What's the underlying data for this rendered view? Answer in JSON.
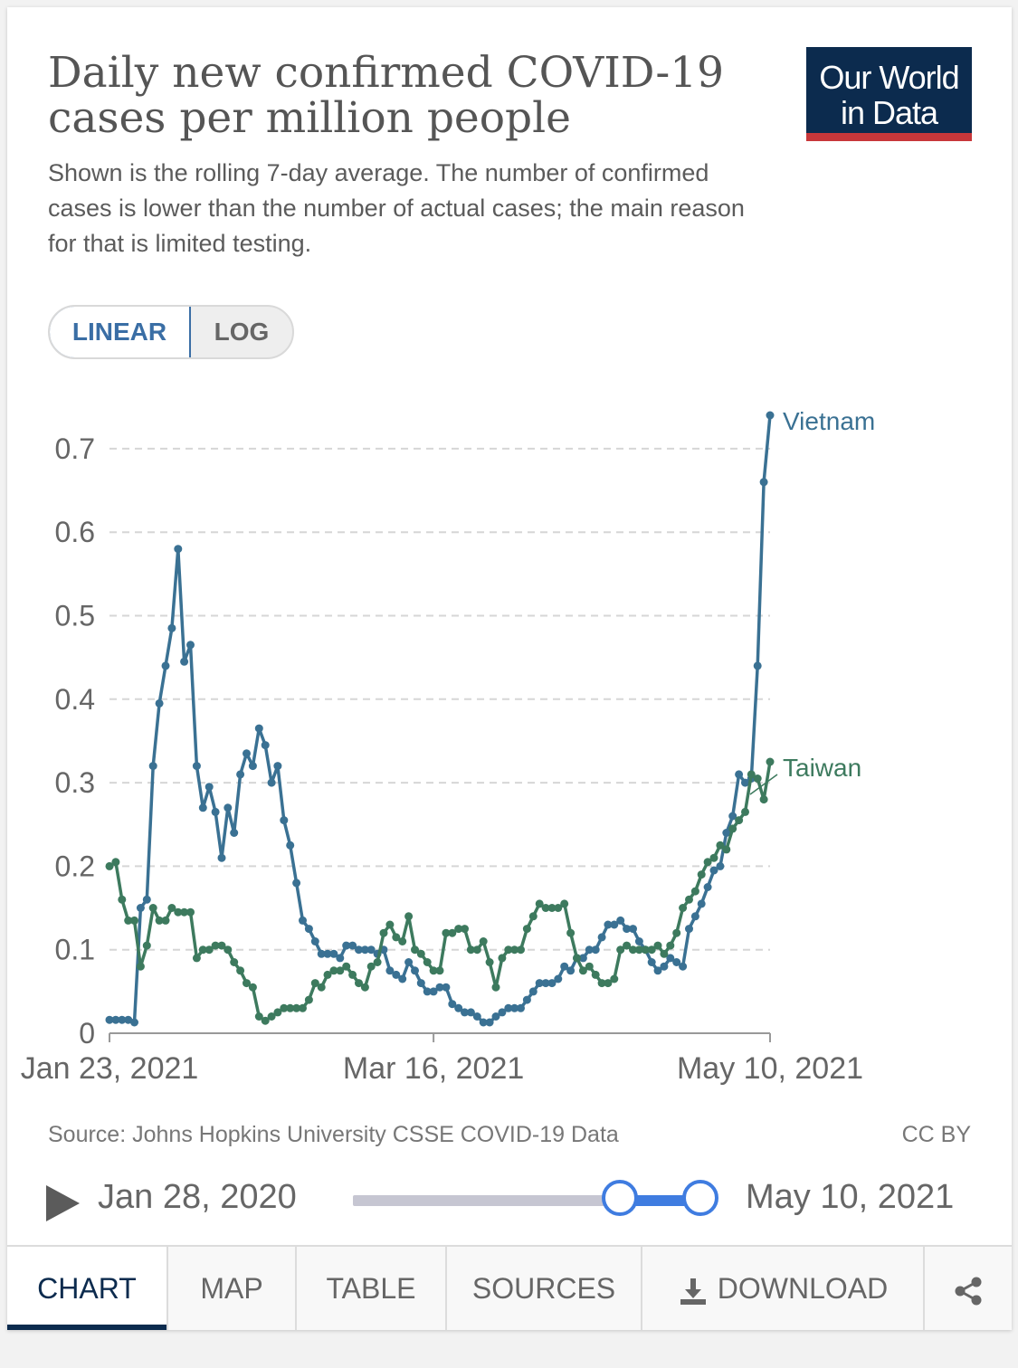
{
  "title": "Daily new confirmed COVID-19 cases per million people",
  "subtitle": "Shown is the rolling 7-day average. The number of confirmed cases is lower than the number of actual cases; the main reason for that is limited testing.",
  "logo": {
    "line1": "Our World",
    "line2": "in Data"
  },
  "scale_toggle": {
    "linear": "LINEAR",
    "log": "LOG",
    "selected": "LINEAR"
  },
  "chart_data": {
    "type": "line",
    "x_start": "Jan 23, 2021",
    "x_end": "May 10, 2021",
    "x_tick_labels": [
      "Jan 23, 2021",
      "Mar 16, 2021",
      "May 10, 2021"
    ],
    "y_tick_labels": [
      "0",
      "0.1",
      "0.2",
      "0.3",
      "0.4",
      "0.5",
      "0.6",
      "0.7"
    ],
    "ylim": [
      0,
      0.74
    ],
    "grid": true,
    "legend": "end-of-line labels",
    "series": [
      {
        "name": "Vietnam",
        "color": "#3a7193",
        "values": [
          0.016,
          0.016,
          0.016,
          0.016,
          0.013,
          0.15,
          0.16,
          0.32,
          0.395,
          0.44,
          0.485,
          0.58,
          0.445,
          0.465,
          0.32,
          0.27,
          0.295,
          0.265,
          0.21,
          0.27,
          0.24,
          0.31,
          0.335,
          0.32,
          0.365,
          0.345,
          0.3,
          0.32,
          0.255,
          0.225,
          0.18,
          0.135,
          0.125,
          0.11,
          0.095,
          0.095,
          0.095,
          0.09,
          0.105,
          0.105,
          0.1,
          0.1,
          0.1,
          0.095,
          0.1,
          0.075,
          0.07,
          0.065,
          0.085,
          0.075,
          0.06,
          0.05,
          0.05,
          0.055,
          0.055,
          0.035,
          0.03,
          0.025,
          0.025,
          0.02,
          0.013,
          0.013,
          0.02,
          0.025,
          0.03,
          0.03,
          0.03,
          0.04,
          0.05,
          0.06,
          0.06,
          0.06,
          0.065,
          0.08,
          0.075,
          0.09,
          0.09,
          0.1,
          0.1,
          0.115,
          0.13,
          0.13,
          0.135,
          0.125,
          0.125,
          0.11,
          0.1,
          0.085,
          0.075,
          0.08,
          0.09,
          0.085,
          0.08,
          0.125,
          0.14,
          0.155,
          0.175,
          0.195,
          0.2,
          0.24,
          0.26,
          0.31,
          0.3,
          0.305,
          0.44,
          0.66,
          0.74
        ]
      },
      {
        "name": "Taiwan",
        "color": "#3d7a5e",
        "values": [
          0.2,
          0.205,
          0.16,
          0.135,
          0.135,
          0.08,
          0.105,
          0.15,
          0.135,
          0.135,
          0.15,
          0.145,
          0.145,
          0.145,
          0.09,
          0.1,
          0.1,
          0.105,
          0.105,
          0.1,
          0.085,
          0.075,
          0.06,
          0.055,
          0.02,
          0.015,
          0.02,
          0.025,
          0.03,
          0.03,
          0.03,
          0.03,
          0.04,
          0.06,
          0.055,
          0.07,
          0.075,
          0.075,
          0.08,
          0.07,
          0.06,
          0.055,
          0.08,
          0.085,
          0.12,
          0.13,
          0.115,
          0.11,
          0.14,
          0.1,
          0.095,
          0.085,
          0.075,
          0.075,
          0.12,
          0.12,
          0.125,
          0.125,
          0.1,
          0.1,
          0.11,
          0.085,
          0.055,
          0.09,
          0.1,
          0.1,
          0.1,
          0.125,
          0.14,
          0.155,
          0.15,
          0.15,
          0.15,
          0.155,
          0.12,
          0.09,
          0.075,
          0.08,
          0.07,
          0.06,
          0.06,
          0.065,
          0.1,
          0.105,
          0.1,
          0.1,
          0.1,
          0.1,
          0.105,
          0.095,
          0.105,
          0.12,
          0.15,
          0.16,
          0.17,
          0.19,
          0.205,
          0.21,
          0.225,
          0.22,
          0.245,
          0.255,
          0.265,
          0.31,
          0.305,
          0.28,
          0.325
        ]
      }
    ]
  },
  "source": "Source: Johns Hopkins University CSSE COVID-19 Data",
  "license": "CC BY",
  "timeline": {
    "start_label": "Jan 28, 2020",
    "end_label": "May 10, 2021",
    "selected_start_fraction": 0.78,
    "selected_end_fraction": 1.0
  },
  "tabs": {
    "chart": "CHART",
    "map": "MAP",
    "table": "TABLE",
    "sources": "SOURCES",
    "download": "DOWNLOAD"
  },
  "icons": {
    "play": "play-icon",
    "download": "download-icon",
    "share": "share-icon"
  }
}
